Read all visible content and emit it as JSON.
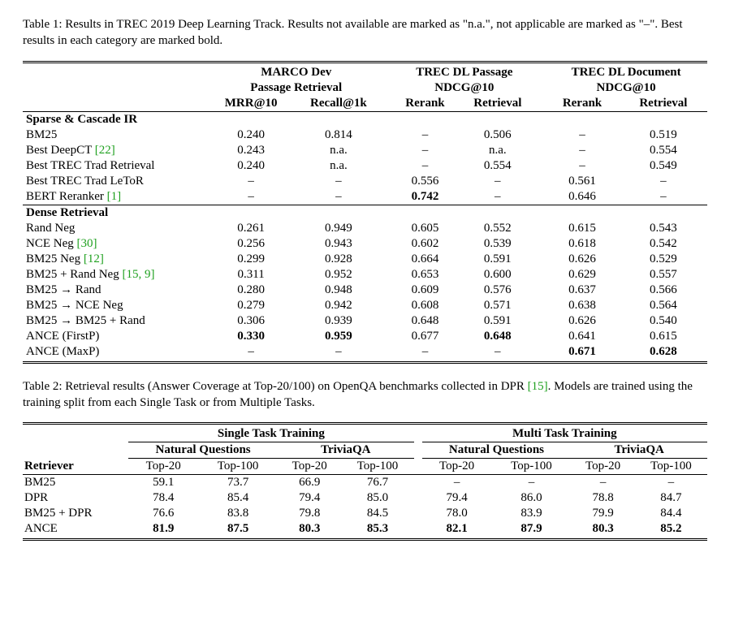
{
  "table1": {
    "caption": "Table 1: Results in TREC 2019 Deep Learning Track. Results not available are marked as \"n.a.\", not applicable are marked as \"–\". Best results in each category are marked bold.",
    "group_headers": [
      "MARCO Dev",
      "TREC DL Passage",
      "TREC DL Document"
    ],
    "group_sub": [
      "Passage Retrieval",
      "NDCG@10",
      "NDCG@10"
    ],
    "cols": [
      "MRR@10",
      "Recall@1k",
      "Rerank",
      "Retrieval",
      "Rerank",
      "Retrieval"
    ],
    "section1": "Sparse & Cascade IR",
    "section2": "Dense Retrieval",
    "rows_s1": [
      {
        "label": "BM25",
        "cite": null,
        "v": [
          "0.240",
          "0.814",
          "–",
          "0.506",
          "–",
          "0.519"
        ],
        "bold": [
          0,
          0,
          0,
          0,
          0,
          0
        ]
      },
      {
        "label": "Best DeepCT ",
        "cite": "[22]",
        "v": [
          "0.243",
          "n.a.",
          "–",
          "n.a.",
          "–",
          "0.554"
        ],
        "bold": [
          0,
          0,
          0,
          0,
          0,
          0
        ]
      },
      {
        "label": "Best TREC Trad Retrieval",
        "cite": null,
        "v": [
          "0.240",
          "n.a.",
          "–",
          "0.554",
          "–",
          "0.549"
        ],
        "bold": [
          0,
          0,
          0,
          0,
          0,
          0
        ]
      },
      {
        "label": "Best TREC Trad LeToR",
        "cite": null,
        "v": [
          "–",
          "–",
          "0.556",
          "–",
          "0.561",
          "–"
        ],
        "bold": [
          0,
          0,
          0,
          0,
          0,
          0
        ]
      },
      {
        "label": "BERT Reranker ",
        "cite": "[1]",
        "v": [
          "–",
          "–",
          "0.742",
          "–",
          "0.646",
          "–"
        ],
        "bold": [
          0,
          0,
          1,
          0,
          0,
          0
        ]
      }
    ],
    "rows_s2": [
      {
        "label": "Rand Neg",
        "cite": null,
        "v": [
          "0.261",
          "0.949",
          "0.605",
          "0.552",
          "0.615",
          "0.543"
        ],
        "bold": [
          0,
          0,
          0,
          0,
          0,
          0
        ]
      },
      {
        "label": "NCE Neg ",
        "cite": "[30]",
        "v": [
          "0.256",
          "0.943",
          "0.602",
          "0.539",
          "0.618",
          "0.542"
        ],
        "bold": [
          0,
          0,
          0,
          0,
          0,
          0
        ]
      },
      {
        "label": "BM25 Neg ",
        "cite": "[12]",
        "v": [
          "0.299",
          "0.928",
          "0.664",
          "0.591",
          "0.626",
          "0.529"
        ],
        "bold": [
          0,
          0,
          0,
          0,
          0,
          0
        ]
      },
      {
        "label": "BM25 + Rand Neg ",
        "cite": "[15, 9]",
        "v": [
          "0.311",
          "0.952",
          "0.653",
          "0.600",
          "0.629",
          "0.557"
        ],
        "bold": [
          0,
          0,
          0,
          0,
          0,
          0
        ]
      },
      {
        "label": "BM25 → Rand",
        "cite": null,
        "v": [
          "0.280",
          "0.948",
          "0.609",
          "0.576",
          "0.637",
          "0.566"
        ],
        "bold": [
          0,
          0,
          0,
          0,
          0,
          0
        ]
      },
      {
        "label": "BM25 → NCE Neg",
        "cite": null,
        "v": [
          "0.279",
          "0.942",
          "0.608",
          "0.571",
          "0.638",
          "0.564"
        ],
        "bold": [
          0,
          0,
          0,
          0,
          0,
          0
        ]
      },
      {
        "label": "BM25 → BM25 + Rand",
        "cite": null,
        "v": [
          "0.306",
          "0.939",
          "0.648",
          "0.591",
          "0.626",
          "0.540"
        ],
        "bold": [
          0,
          0,
          0,
          0,
          0,
          0
        ]
      },
      {
        "label": "ANCE (FirstP)",
        "cite": null,
        "v": [
          "0.330",
          "0.959",
          "0.677",
          "0.648",
          "0.641",
          "0.615"
        ],
        "bold": [
          1,
          1,
          0,
          1,
          0,
          0
        ]
      },
      {
        "label": "ANCE (MaxP)",
        "cite": null,
        "v": [
          "–",
          "–",
          "–",
          "–",
          "0.671",
          "0.628"
        ],
        "bold": [
          0,
          0,
          0,
          0,
          1,
          1
        ]
      }
    ]
  },
  "table2": {
    "caption": "Table 2: Retrieval results (Answer Coverage at Top-20/100) on OpenQA benchmarks collected in DPR [15]. Models are trained using the training split from each Single Task or from Multiple Tasks.",
    "cite_text": "[15]",
    "caption_pre": "Table 2: Retrieval results (Answer Coverage at Top-20/100) on OpenQA benchmarks collected in DPR ",
    "caption_post": ". Models are trained using the training split from each Single Task or from Multiple Tasks.",
    "group_headers": [
      "Single Task Training",
      "Multi Task Training"
    ],
    "sub_headers": [
      "Natural Questions",
      "TriviaQA",
      "Natural Questions",
      "TriviaQA"
    ],
    "cols_label": "Retriever",
    "cols": [
      "Top-20",
      "Top-100",
      "Top-20",
      "Top-100",
      "Top-20",
      "Top-100",
      "Top-20",
      "Top-100"
    ],
    "rows": [
      {
        "label": "BM25",
        "v": [
          "59.1",
          "73.7",
          "66.9",
          "76.7",
          "–",
          "–",
          "–",
          "–"
        ],
        "bold": [
          0,
          0,
          0,
          0,
          0,
          0,
          0,
          0
        ]
      },
      {
        "label": "DPR",
        "v": [
          "78.4",
          "85.4",
          "79.4",
          "85.0",
          "79.4",
          "86.0",
          "78.8",
          "84.7"
        ],
        "bold": [
          0,
          0,
          0,
          0,
          0,
          0,
          0,
          0
        ]
      },
      {
        "label": "BM25 + DPR",
        "v": [
          "76.6",
          "83.8",
          "79.8",
          "84.5",
          "78.0",
          "83.9",
          "79.9",
          "84.4"
        ],
        "bold": [
          0,
          0,
          0,
          0,
          0,
          0,
          0,
          0
        ]
      },
      {
        "label": "ANCE",
        "v": [
          "81.9",
          "87.5",
          "80.3",
          "85.3",
          "82.1",
          "87.9",
          "80.3",
          "85.2"
        ],
        "bold": [
          1,
          1,
          1,
          1,
          1,
          1,
          1,
          1
        ]
      }
    ]
  }
}
